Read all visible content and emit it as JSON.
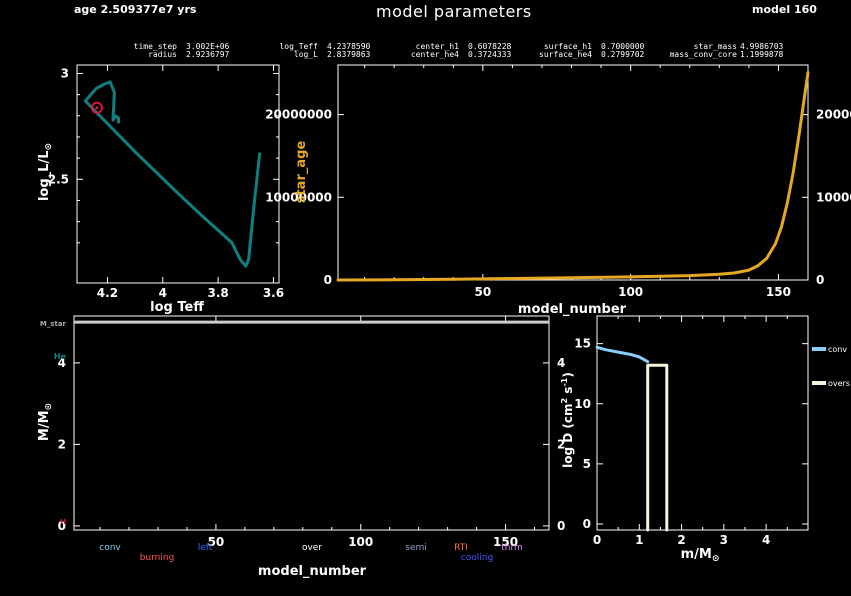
{
  "header": {
    "age_text": "age 2.509377e7 yrs",
    "title": "model parameters",
    "model_text": "model 160"
  },
  "info_table": [
    {
      "label": "time_step",
      "value": "3.002E+06"
    },
    {
      "label": "radius",
      "value": "2.9236797"
    },
    {
      "label": "log_Teff",
      "value": "4.2378590"
    },
    {
      "label": "log_L",
      "value": "2.8379863"
    },
    {
      "label": "center_h1",
      "value": "0.6078228"
    },
    {
      "label": "center_he4",
      "value": "0.3724333"
    },
    {
      "label": "surface_h1",
      "value": "0.7000000"
    },
    {
      "label": "surface_he4",
      "value": "0.2799702"
    },
    {
      "label": "star_mass",
      "value": "4.9986703"
    },
    {
      "label": "mass_conv_core",
      "value": "1.1999878"
    }
  ],
  "colors": {
    "hr_track": "#0e8080",
    "star_age": "#e6a823",
    "current_marker": "#dc143c",
    "conv": "#87cefa",
    "overs": "#f5f5dc",
    "axis": "#ffffff"
  },
  "chart_data": [
    {
      "type": "line",
      "name": "hr_diagram",
      "xlabel": "log Teff",
      "ylabel": "log_L/L_sun",
      "xlim": [
        4.31,
        3.58
      ],
      "ylim": [
        2.01,
        3.04
      ],
      "x_reversed": true,
      "xticks": [
        "4.2",
        "4",
        "3.8",
        "3.6"
      ],
      "yticks": [
        "2.5",
        "3"
      ],
      "series": [
        {
          "name": "track",
          "x": [
            4.16,
            4.16,
            4.17,
            4.18,
            4.175,
            4.19,
            4.21,
            4.24,
            4.26,
            4.28,
            4.1,
            3.95,
            3.86,
            3.75,
            3.72,
            3.7,
            3.69,
            3.67,
            3.65
          ],
          "y": [
            2.77,
            2.79,
            2.8,
            2.78,
            2.91,
            2.96,
            2.95,
            2.93,
            2.9,
            2.87,
            2.63,
            2.44,
            2.33,
            2.2,
            2.12,
            2.09,
            2.12,
            2.38,
            2.62
          ]
        }
      ],
      "current_point": {
        "x": 4.237859,
        "y": 2.8379863
      }
    },
    {
      "type": "line",
      "name": "star_age_history",
      "xlabel": "model_number",
      "ylabel": "star_age",
      "xlim": [
        1,
        160
      ],
      "ylim": [
        0,
        26000000
      ],
      "xticks": [
        "50",
        "100",
        "150"
      ],
      "yticks_left": [
        "0",
        "10000000",
        "20000000"
      ],
      "yticks_right": [
        "0",
        "10000",
        "20000"
      ],
      "series": [
        {
          "name": "star_age",
          "x": [
            1,
            20,
            40,
            60,
            80,
            100,
            110,
            120,
            130,
            135,
            140,
            143,
            146,
            149,
            151,
            153,
            155,
            157,
            159,
            160
          ],
          "y": [
            0,
            20000,
            80000,
            180000,
            280000,
            380000,
            450000,
            530000,
            700000,
            850000,
            1200000,
            1700000,
            2600000,
            4400000,
            6400000,
            9300000,
            13000000,
            17600000,
            22600000,
            25093770
          ]
        }
      ]
    },
    {
      "type": "area",
      "name": "kippenhahn",
      "xlabel": "model_number",
      "ylabel": "M/M_sun",
      "ylabel_right": "log D (cm^2 s^-1)",
      "xlim": [
        1,
        165
      ],
      "ylim": [
        -0.1,
        5.15
      ],
      "xticks": [
        "50",
        "100",
        "150"
      ],
      "yticks_left": [
        "0",
        "2",
        "4"
      ],
      "yticks_right": [
        "0",
        "2",
        "4"
      ],
      "star_mass_value": 4.9986703,
      "edge_labels": {
        "star_mass": "M_star",
        "he": "He",
        "h": "H"
      },
      "legend": [
        {
          "name": "conv",
          "color": "#87cefa"
        },
        {
          "name": "burning",
          "color": "#ff5555"
        },
        {
          "name": "left",
          "color": "#3a6bff"
        },
        {
          "name": "over",
          "color": "#ffffff"
        },
        {
          "name": "semi",
          "color": "#8fa0c8"
        },
        {
          "name": "cooling",
          "color": "#4455ff"
        },
        {
          "name": "RTI",
          "color": "#ff6a3c"
        },
        {
          "name": "thrm",
          "color": "#d58ce8"
        }
      ]
    },
    {
      "type": "line",
      "name": "mixing_profile",
      "xlabel": "m/M_sun",
      "ylabel": "log D (cm^2 s^-1)",
      "xlim": [
        0,
        4.99
      ],
      "ylim": [
        -0.5,
        17.3
      ],
      "xticks": [
        "0",
        "1",
        "2",
        "3",
        "4"
      ],
      "yticks": [
        "0",
        "5",
        "10",
        "15"
      ],
      "series": [
        {
          "name": "conv",
          "x": [
            0,
            0.2,
            0.5,
            0.8,
            1.0,
            1.1,
            1.2
          ],
          "y": [
            14.7,
            14.5,
            14.3,
            14.1,
            13.9,
            13.7,
            13.5
          ]
        },
        {
          "name": "overs",
          "x": [
            1.2,
            1.2,
            1.65,
            1.65
          ],
          "y": [
            -0.5,
            13.2,
            13.2,
            -0.5
          ]
        }
      ],
      "legend": [
        {
          "name": "conv",
          "color": "#87cefa"
        },
        {
          "name": "overs",
          "color": "#f5f5dc"
        }
      ]
    }
  ]
}
